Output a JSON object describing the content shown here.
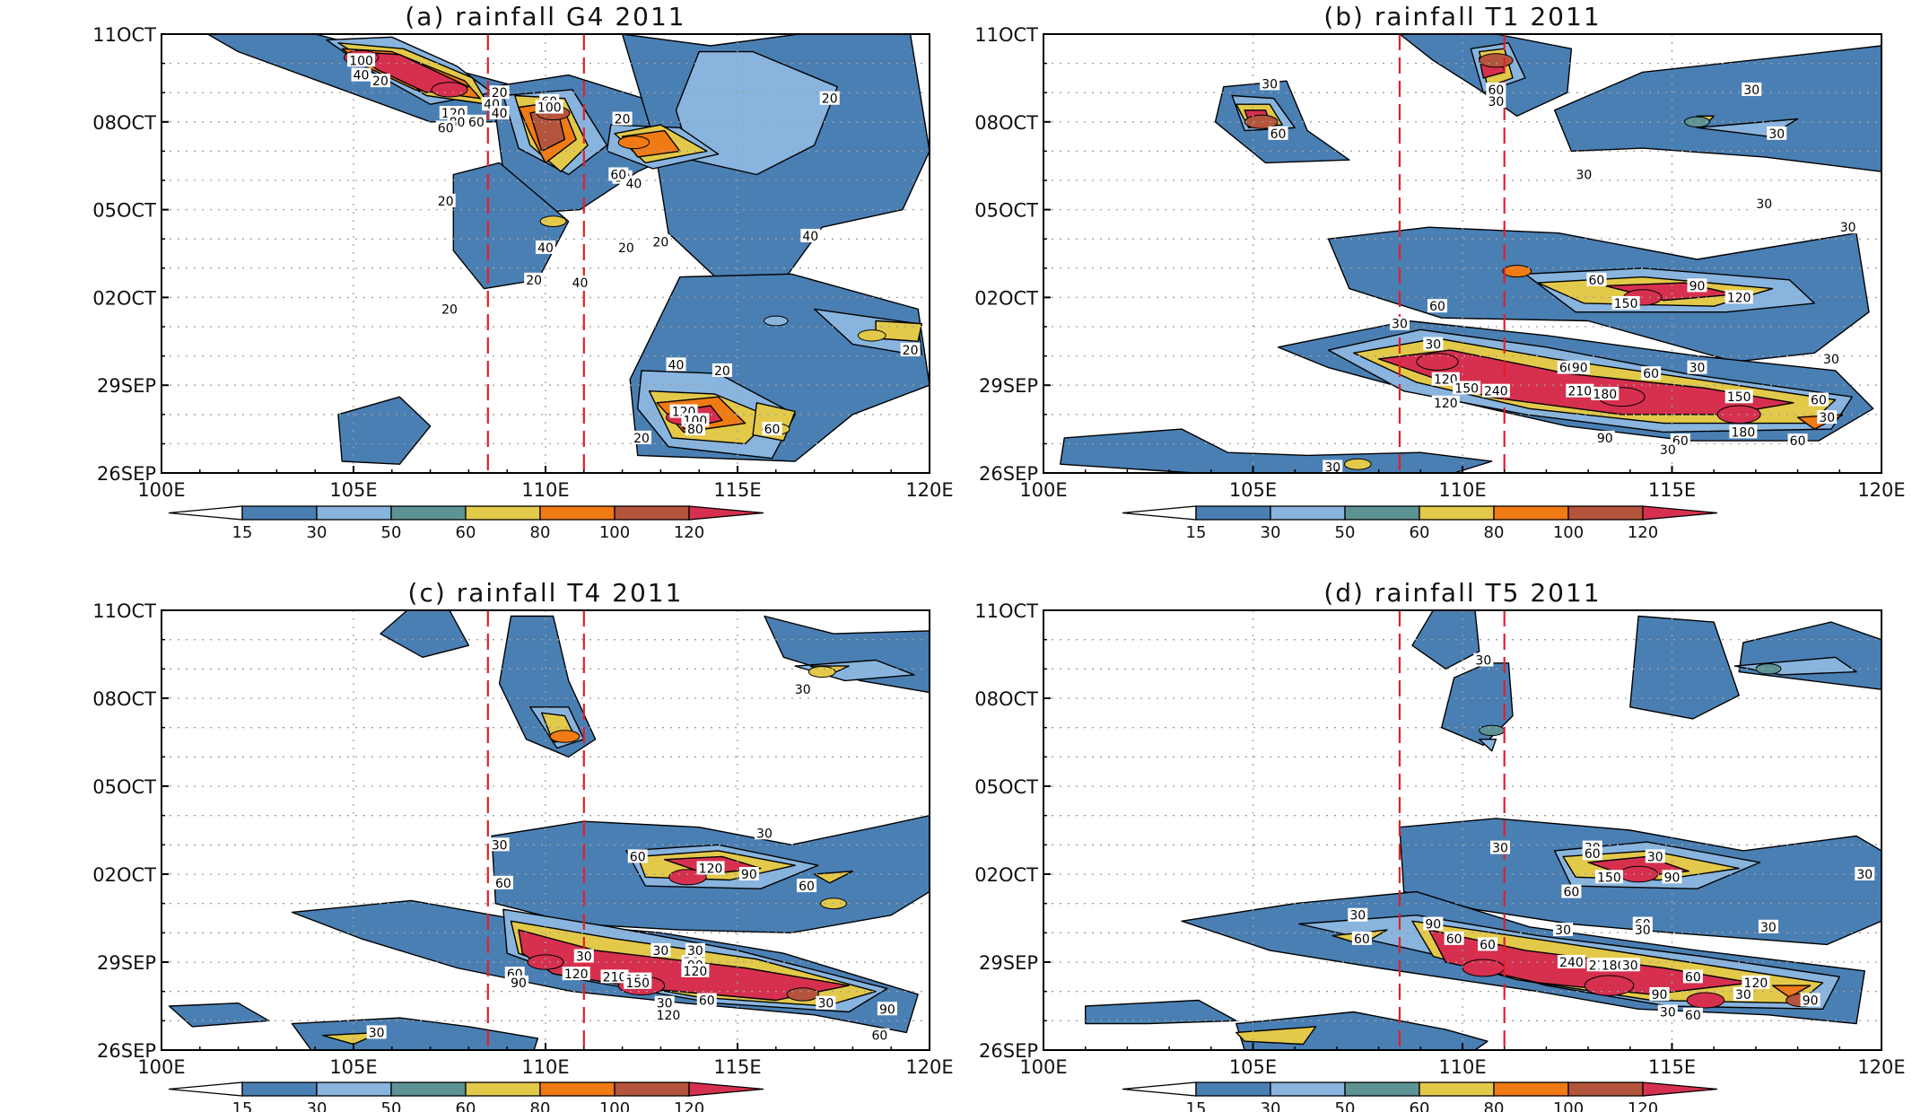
{
  "figure": {
    "colors": {
      "levels": [
        "#4a7fb3",
        "#88b4de",
        "#5e9393",
        "#e3c94a",
        "#f07a14",
        "#b5543c",
        "#d6304e"
      ],
      "contour": "#000000",
      "box": "#e0202a",
      "grid": "#a0a0a0"
    },
    "colorbar": {
      "ticks": [
        "15",
        "30",
        "50",
        "60",
        "80",
        "100",
        "120"
      ]
    }
  },
  "chart_data": [
    {
      "type": "heatmap",
      "title": "(a) rainfall  G4 2011",
      "xlabel": "",
      "ylabel": "",
      "x_ticks": [
        "100E",
        "105E",
        "110E",
        "115E",
        "120E"
      ],
      "y_ticks": [
        "26SEP",
        "29SEP",
        "02OCT",
        "05OCT",
        "08OCT",
        "11OCT"
      ],
      "xlim": [
        100,
        120
      ],
      "ylim": [
        "26SEP",
        "11OCT"
      ],
      "region_box_lon": [
        108.5,
        111
      ],
      "levels": [
        15,
        30,
        50,
        60,
        80,
        100,
        120
      ],
      "cells": [
        {
          "lon": 105.2,
          "day": 14.2,
          "value": 120
        },
        {
          "lon": 107.5,
          "day": 13.1,
          "value": 130
        },
        {
          "lon": 110.2,
          "day": 12.3,
          "value": 110
        },
        {
          "lon": 112.3,
          "day": 11.3,
          "value": 95
        },
        {
          "lon": 110.2,
          "day": 8.6,
          "value": 60
        },
        {
          "lon": 113.6,
          "day": 1.9,
          "value": 125
        },
        {
          "lon": 116,
          "day": 1.5,
          "value": 70
        },
        {
          "lon": 116,
          "day": 5.2,
          "value": 45
        },
        {
          "lon": 118.5,
          "day": 4.7,
          "value": 72
        }
      ],
      "labels": [
        "100",
        "40",
        "20",
        "120",
        "80",
        "60",
        "20",
        "40",
        "60",
        "100",
        "40",
        "60",
        "80",
        "40",
        "20",
        "20",
        "20",
        "40",
        "20",
        "20",
        "40",
        "40",
        "20",
        "20",
        "60",
        "120",
        "100",
        "80",
        "60",
        "20",
        "40",
        "20",
        "20"
      ]
    },
    {
      "type": "heatmap",
      "title": "(b) rainfall  T1 2011",
      "xlabel": "",
      "ylabel": "",
      "x_ticks": [
        "100E",
        "105E",
        "110E",
        "115E",
        "120E"
      ],
      "y_ticks": [
        "26SEP",
        "29SEP",
        "02OCT",
        "05OCT",
        "08OCT",
        "11OCT"
      ],
      "xlim": [
        100,
        120
      ],
      "ylim": [
        "26SEP",
        "11OCT"
      ],
      "region_box_lon": [
        108.5,
        111
      ],
      "levels": [
        15,
        30,
        50,
        60,
        80,
        100,
        120
      ],
      "cells": [
        {
          "lon": 105.2,
          "day": 12.0,
          "value": 110
        },
        {
          "lon": 110.8,
          "day": 14.1,
          "value": 115
        },
        {
          "lon": 111.3,
          "day": 6.9,
          "value": 80
        },
        {
          "lon": 114.3,
          "day": 6.0,
          "value": 145
        },
        {
          "lon": 109.4,
          "day": 3.8,
          "value": 170
        },
        {
          "lon": 113.8,
          "day": 2.6,
          "value": 200
        },
        {
          "lon": 116.6,
          "day": 2.0,
          "value": 180
        },
        {
          "lon": 115.6,
          "day": 12.0,
          "value": 55
        },
        {
          "lon": 107.5,
          "day": 0.3,
          "value": 65
        }
      ],
      "labels": [
        "30",
        "60",
        "60",
        "30",
        "30",
        "30",
        "30",
        "30",
        "30",
        "30",
        "60",
        "90",
        "120",
        "150",
        "60",
        "30",
        "30",
        "60",
        "90",
        "120",
        "150",
        "240",
        "210",
        "180",
        "60",
        "30",
        "120",
        "150",
        "180",
        "90",
        "60",
        "30",
        "60",
        "30",
        "60",
        "30"
      ]
    },
    {
      "type": "heatmap",
      "title": "(c) rainfall  T4 2011",
      "xlabel": "",
      "ylabel": "",
      "x_ticks": [
        "100E",
        "105E",
        "110E",
        "115E",
        "120E"
      ],
      "y_ticks": [
        "26SEP",
        "29SEP",
        "02OCT",
        "05OCT",
        "08OCT",
        "11OCT"
      ],
      "xlim": [
        100,
        120
      ],
      "ylim": [
        "26SEP",
        "11OCT"
      ],
      "region_box_lon": [
        108.5,
        111
      ],
      "levels": [
        15,
        30,
        50,
        60,
        80,
        100,
        120
      ],
      "cells": [
        {
          "lon": 110.5,
          "day": 10.7,
          "value": 85
        },
        {
          "lon": 113.7,
          "day": 5.9,
          "value": 140
        },
        {
          "lon": 110,
          "day": 3.0,
          "value": 130
        },
        {
          "lon": 112.5,
          "day": 2.2,
          "value": 200
        },
        {
          "lon": 116.7,
          "day": 1.9,
          "value": 100
        },
        {
          "lon": 117.2,
          "day": 12.9,
          "value": 65
        },
        {
          "lon": 117.5,
          "day": 5.0,
          "value": 60
        }
      ],
      "labels": [
        "30",
        "60",
        "30",
        "30",
        "30",
        "60",
        "120",
        "90",
        "60",
        "30",
        "30",
        "60",
        "90",
        "120",
        "210",
        "180",
        "150",
        "90",
        "120",
        "30",
        "60",
        "120",
        "30",
        "90",
        "60",
        "30",
        "30"
      ]
    },
    {
      "type": "heatmap",
      "title": "(d) rainfall  T5 2011",
      "xlabel": "",
      "ylabel": "",
      "x_ticks": [
        "100E",
        "105E",
        "110E",
        "115E",
        "120E"
      ],
      "y_ticks": [
        "26SEP",
        "29SEP",
        "02OCT",
        "05OCT",
        "08OCT",
        "11OCT"
      ],
      "xlim": [
        100,
        120
      ],
      "ylim": [
        "26SEP",
        "11OCT"
      ],
      "region_box_lon": [
        108.5,
        111
      ],
      "levels": [
        15,
        30,
        50,
        60,
        80,
        100,
        120
      ],
      "cells": [
        {
          "lon": 110.7,
          "day": 10.9,
          "value": 55
        },
        {
          "lon": 114.2,
          "day": 6.0,
          "value": 150
        },
        {
          "lon": 110.5,
          "day": 2.8,
          "value": 170
        },
        {
          "lon": 113.5,
          "day": 2.2,
          "value": 220
        },
        {
          "lon": 115.8,
          "day": 1.7,
          "value": 140
        },
        {
          "lon": 118.1,
          "day": 1.7,
          "value": 100
        },
        {
          "lon": 117.3,
          "day": 13.0,
          "value": 55
        }
      ],
      "labels": [
        "30",
        "60",
        "30",
        "30",
        "30",
        "30",
        "60",
        "150",
        "90",
        "30",
        "60",
        "60",
        "30",
        "30",
        "90",
        "60",
        "60",
        "240",
        "210",
        "180",
        "30",
        "120",
        "90",
        "60",
        "30",
        "30",
        "60",
        "90",
        "30"
      ]
    }
  ]
}
